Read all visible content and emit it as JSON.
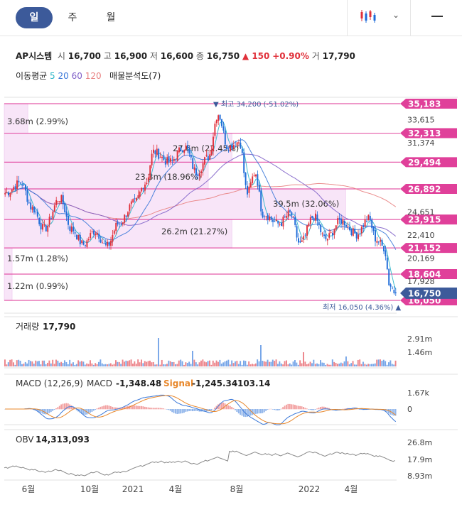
{
  "tabs": {
    "day": "일",
    "week": "주",
    "month": "월"
  },
  "stock": {
    "name": "AP시스템",
    "open_label": "시",
    "open": "16,700",
    "high_label": "고",
    "high": "16,900",
    "low_label": "저",
    "low": "16,600",
    "close_label": "종",
    "close": "16,750",
    "change": "▲ 150",
    "change_pct": "+0.90%",
    "volume_label": "거",
    "volume": "17,790"
  },
  "indicators": {
    "ma_label": "이동평균",
    "ma_periods": [
      "5",
      "20",
      "60",
      "120"
    ],
    "ma_colors": [
      "#2bb5c8",
      "#3a78d8",
      "#8060c8",
      "#e88080"
    ],
    "profile_label": "매물분석도(7)"
  },
  "colors": {
    "up": "#e0303a",
    "down": "#1d6bd8",
    "profile": "#f5dcf5",
    "level": "#e0409a",
    "current": "#3c5a9a"
  },
  "chart_data": [
    {
      "type": "candlestick",
      "x_tick_labels": [
        "6월",
        "10월",
        "2021",
        "4월",
        "8월",
        "2022",
        "4월"
      ],
      "y_ticks": [
        33615,
        31374,
        24651,
        22410,
        20169,
        17928
      ],
      "ylim": [
        16050,
        35183
      ],
      "high_marker": "▼ 최고 34,200 (-51.02%)",
      "low_marker": "최저 16,050 (4.36%) ▲",
      "current_price": "16,750",
      "level_lines": [
        "35,183",
        "32,313",
        "29,494",
        "26,892",
        "23,915",
        "21,152",
        "18,604",
        "16,050"
      ],
      "volume_profile": [
        {
          "label": "3.68m (2.99%)"
        },
        {
          "label": "27.6m (22.45%)"
        },
        {
          "label": "23.3m (18.96%)"
        },
        {
          "label": "39.5m (32.06%)"
        },
        {
          "label": "26.2m (21.27%)"
        },
        {
          "label": "1.57m (1.28%)"
        },
        {
          "label": "1.22m (0.99%)"
        }
      ],
      "price_path": [
        {
          "x": 0,
          "y": 26500
        },
        {
          "x": 0.04,
          "y": 27500
        },
        {
          "x": 0.07,
          "y": 25000
        },
        {
          "x": 0.1,
          "y": 23000
        },
        {
          "x": 0.14,
          "y": 26000
        },
        {
          "x": 0.17,
          "y": 23000
        },
        {
          "x": 0.2,
          "y": 21500
        },
        {
          "x": 0.23,
          "y": 22800
        },
        {
          "x": 0.26,
          "y": 21300
        },
        {
          "x": 0.29,
          "y": 23500
        },
        {
          "x": 0.33,
          "y": 25500
        },
        {
          "x": 0.36,
          "y": 27500
        },
        {
          "x": 0.38,
          "y": 30500
        },
        {
          "x": 0.42,
          "y": 29500
        },
        {
          "x": 0.46,
          "y": 31000
        },
        {
          "x": 0.49,
          "y": 28500
        },
        {
          "x": 0.52,
          "y": 30000
        },
        {
          "x": 0.545,
          "y": 34200
        },
        {
          "x": 0.57,
          "y": 31000
        },
        {
          "x": 0.6,
          "y": 31500
        },
        {
          "x": 0.62,
          "y": 26500
        },
        {
          "x": 0.64,
          "y": 28500
        },
        {
          "x": 0.66,
          "y": 24500
        },
        {
          "x": 0.7,
          "y": 23500
        },
        {
          "x": 0.73,
          "y": 24500
        },
        {
          "x": 0.755,
          "y": 21500
        },
        {
          "x": 0.79,
          "y": 24200
        },
        {
          "x": 0.82,
          "y": 22000
        },
        {
          "x": 0.86,
          "y": 23800
        },
        {
          "x": 0.9,
          "y": 22500
        },
        {
          "x": 0.93,
          "y": 24000
        },
        {
          "x": 0.95,
          "y": 22000
        },
        {
          "x": 0.97,
          "y": 21200
        },
        {
          "x": 0.985,
          "y": 17500
        },
        {
          "x": 1,
          "y": 16750
        }
      ]
    },
    {
      "type": "bar",
      "title": "거래량",
      "value": "17,790",
      "y_ticks": [
        "2.91m",
        "1.46m"
      ]
    },
    {
      "type": "line",
      "title": "MACD (12,26,9)",
      "macd_label": "MACD",
      "macd_value": "-1,348.48",
      "signal_label": "Signal",
      "signal_value": "-1,245.34",
      "hist_value": "-103.14",
      "y_ticks": [
        "1.67k",
        "0"
      ]
    },
    {
      "type": "line",
      "title": "OBV",
      "value": "14,313,093",
      "y_ticks": [
        "26.8m",
        "17.9m",
        "8.93m"
      ]
    }
  ]
}
